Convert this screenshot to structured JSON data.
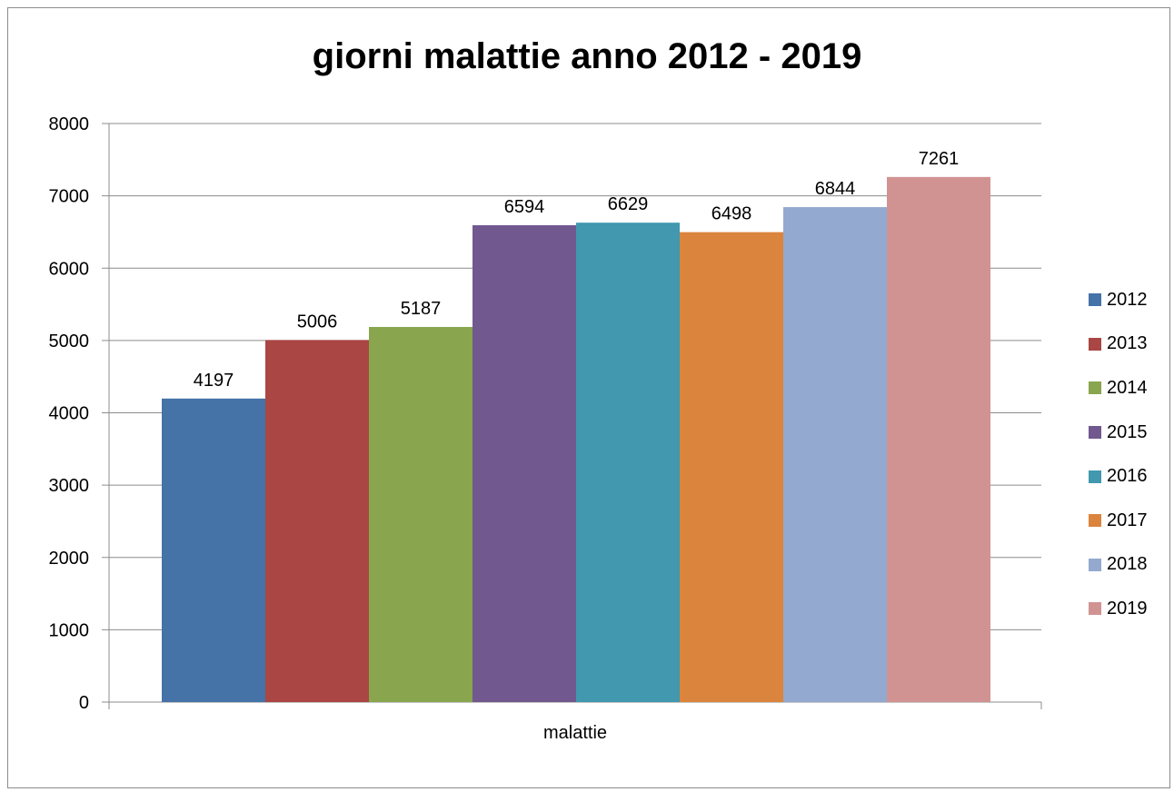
{
  "chart_data": {
    "type": "bar",
    "title": "giorni malattie anno 2012 - 2019",
    "categories": [
      "malattie"
    ],
    "xlabel": "",
    "ylabel": "",
    "ylim": [
      0,
      8000
    ],
    "yticks": [
      "0",
      "1000",
      "2000",
      "3000",
      "4000",
      "5000",
      "6000",
      "7000",
      "8000"
    ],
    "grid": true,
    "legend_position": "right",
    "series": [
      {
        "name": "2012",
        "values": [
          4197
        ],
        "color": "#4572a7"
      },
      {
        "name": "2013",
        "values": [
          5006
        ],
        "color": "#aa4643"
      },
      {
        "name": "2014",
        "values": [
          5187
        ],
        "color": "#89a54e"
      },
      {
        "name": "2015",
        "values": [
          6594
        ],
        "color": "#71588f"
      },
      {
        "name": "2016",
        "values": [
          6629
        ],
        "color": "#4198af"
      },
      {
        "name": "2017",
        "values": [
          6498
        ],
        "color": "#db843d"
      },
      {
        "name": "2018",
        "values": [
          6844
        ],
        "color": "#93a9cf"
      },
      {
        "name": "2019",
        "values": [
          7261
        ],
        "color": "#d19392"
      }
    ]
  }
}
